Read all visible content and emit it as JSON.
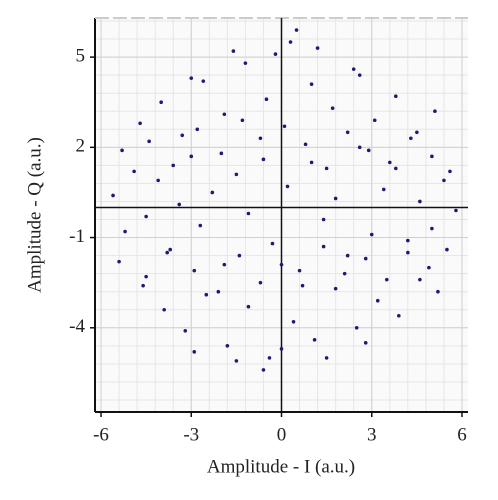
{
  "chart_data": {
    "type": "scatter",
    "x_label": "Amplitude - I (a.u.)",
    "y_label": "Amplitude - Q (a.u.)",
    "xlim": [
      -6.2,
      6.2
    ],
    "ylim": [
      -6.8,
      6.3
    ],
    "xticks": [
      -6,
      -3,
      0,
      3,
      6
    ],
    "yticks": [
      5,
      2,
      -1,
      -4
    ],
    "grid": true,
    "color": "#1c1c78",
    "x": [
      -5.6,
      -5.2,
      -4.9,
      -4.5,
      -4.1,
      -3.8,
      -3.4,
      -3.0,
      -2.7,
      -2.3,
      -1.9,
      -1.5,
      -1.1,
      -0.7,
      -0.3,
      0.2,
      0.6,
      1.0,
      1.4,
      1.8,
      2.2,
      2.6,
      3.0,
      3.4,
      3.8,
      4.2,
      4.6,
      5.0,
      5.4,
      5.8,
      -4.7,
      -4.0,
      -3.3,
      -2.6,
      -1.9,
      -1.2,
      -0.5,
      0.3,
      1.0,
      1.7,
      2.4,
      3.1,
      3.8,
      4.5,
      5.1,
      -4.6,
      -3.9,
      -3.2,
      -2.5,
      -1.8,
      -1.1,
      -0.4,
      0.4,
      1.1,
      1.8,
      2.5,
      3.2,
      3.9,
      4.6,
      5.2,
      -5.3,
      -4.4,
      -3.6,
      -2.8,
      -2.0,
      -1.3,
      -0.6,
      0.1,
      0.8,
      1.5,
      2.2,
      2.9,
      3.6,
      4.3,
      5.0,
      5.6,
      -5.4,
      -4.5,
      -3.7,
      -2.9,
      -2.1,
      -1.4,
      -0.7,
      0.0,
      0.7,
      1.4,
      2.1,
      2.8,
      3.5,
      4.2,
      4.9,
      5.5,
      -3.0,
      -1.6,
      -0.2,
      1.2,
      2.6,
      0.5,
      -2.9,
      -1.5,
      0.0,
      1.5,
      2.8,
      -0.6
    ],
    "y": [
      0.4,
      -0.8,
      1.2,
      -0.3,
      0.9,
      -1.5,
      0.1,
      1.7,
      -0.6,
      0.5,
      -1.9,
      1.1,
      -0.2,
      2.3,
      -1.2,
      0.7,
      -2.1,
      1.5,
      -0.4,
      0.3,
      -1.6,
      2.0,
      -0.9,
      0.6,
      1.3,
      -1.1,
      0.2,
      -0.7,
      0.9,
      -0.1,
      2.8,
      3.5,
      2.4,
      4.2,
      3.1,
      4.8,
      3.6,
      5.5,
      4.1,
      3.3,
      4.6,
      2.9,
      3.7,
      2.5,
      3.2,
      -2.6,
      -3.4,
      -4.1,
      -2.9,
      -4.6,
      -3.3,
      -5.0,
      -3.8,
      -4.4,
      -2.7,
      -4.0,
      -3.1,
      -3.6,
      -2.4,
      -2.8,
      1.9,
      2.2,
      1.4,
      2.6,
      1.8,
      2.9,
      1.6,
      2.7,
      2.1,
      1.3,
      2.5,
      1.9,
      1.5,
      2.3,
      1.7,
      1.2,
      -1.8,
      -2.3,
      -1.4,
      -2.1,
      -2.8,
      -1.6,
      -2.5,
      -1.9,
      -2.6,
      -1.3,
      -2.2,
      -1.7,
      -2.4,
      -1.5,
      -2.0,
      -1.4,
      4.3,
      5.2,
      5.1,
      5.3,
      4.4,
      5.9,
      -4.8,
      -5.1,
      -4.7,
      -5.0,
      -4.5,
      -5.4
    ]
  }
}
